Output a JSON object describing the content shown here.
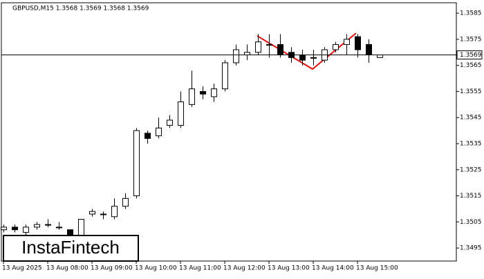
{
  "chart_data": {
    "type": "candlestick",
    "title": "GBPUSD,M15  1.3568 1.3569 1.3568 1.3569",
    "watermark": "InstaFintech",
    "categories": [
      "13 Aug 2025",
      null,
      null,
      null,
      "13 Aug 08:00",
      null,
      null,
      null,
      "13 Aug 09:00",
      null,
      null,
      null,
      "13 Aug 10:00",
      null,
      null,
      null,
      "13 Aug 11:00",
      null,
      null,
      null,
      "13 Aug 12:00",
      null,
      null,
      null,
      "13 Aug 13:00",
      null,
      null,
      null,
      "13 Aug 14:00",
      null,
      null,
      null,
      "13 Aug 15:00",
      null,
      null
    ],
    "open": [
      1.3502,
      1.3503,
      1.3501,
      1.3503,
      1.3504,
      1.3503,
      1.3502,
      1.3499,
      1.3508,
      1.3508,
      1.3507,
      1.3511,
      1.3515,
      1.3539,
      1.3538,
      1.3542,
      1.3542,
      1.355,
      1.3555,
      1.3553,
      1.3556,
      1.3566,
      1.3569,
      1.357,
      1.3573,
      1.3573,
      1.357,
      1.3569,
      1.3568,
      1.3567,
      1.3571,
      1.3573,
      1.3576,
      1.3573,
      1.3568
    ],
    "high": [
      1.3504,
      1.3504,
      1.3504,
      1.3505,
      1.3506,
      1.3505,
      1.3502,
      1.3506,
      1.351,
      1.3509,
      1.3514,
      1.3516,
      1.3541,
      1.354,
      1.3545,
      1.3546,
      1.3555,
      1.3563,
      1.3557,
      1.3558,
      1.3567,
      1.3573,
      1.3573,
      1.3577,
      1.3577,
      1.3577,
      1.3572,
      1.3571,
      1.3571,
      1.3572,
      1.3574,
      1.3577,
      1.3577,
      1.3575,
      1.3569
    ],
    "low": [
      1.3501,
      1.3501,
      1.35,
      1.3502,
      1.3503,
      1.3502,
      1.3499,
      1.3498,
      1.3507,
      1.3506,
      1.3506,
      1.351,
      1.3514,
      1.3535,
      1.3537,
      1.3541,
      1.3541,
      1.3549,
      1.3552,
      1.3551,
      1.3555,
      1.3565,
      1.3567,
      1.3569,
      1.3568,
      1.3568,
      1.3566,
      1.3565,
      1.3565,
      1.3566,
      1.357,
      1.3569,
      1.3568,
      1.3566,
      1.3568
    ],
    "close": [
      1.3503,
      1.3502,
      1.3503,
      1.3504,
      1.3504,
      1.3503,
      1.35,
      1.3506,
      1.3509,
      1.3508,
      1.3511,
      1.3514,
      1.354,
      1.3537,
      1.3541,
      1.3544,
      1.3551,
      1.3556,
      1.3554,
      1.3556,
      1.3566,
      1.3571,
      1.357,
      1.3574,
      1.3573,
      1.3569,
      1.3568,
      1.3567,
      1.3568,
      1.3571,
      1.3573,
      1.3575,
      1.3571,
      1.3569,
      1.3569
    ],
    "up_color": "#ffffff",
    "down_color": "#000000",
    "current_price": 1.3569,
    "ylim": [
      1.349,
      1.3589
    ],
    "yticks": [
      1.3585,
      1.3575,
      1.3565,
      1.3555,
      1.3545,
      1.3535,
      1.3525,
      1.3515,
      1.3505,
      1.3495
    ]
  }
}
